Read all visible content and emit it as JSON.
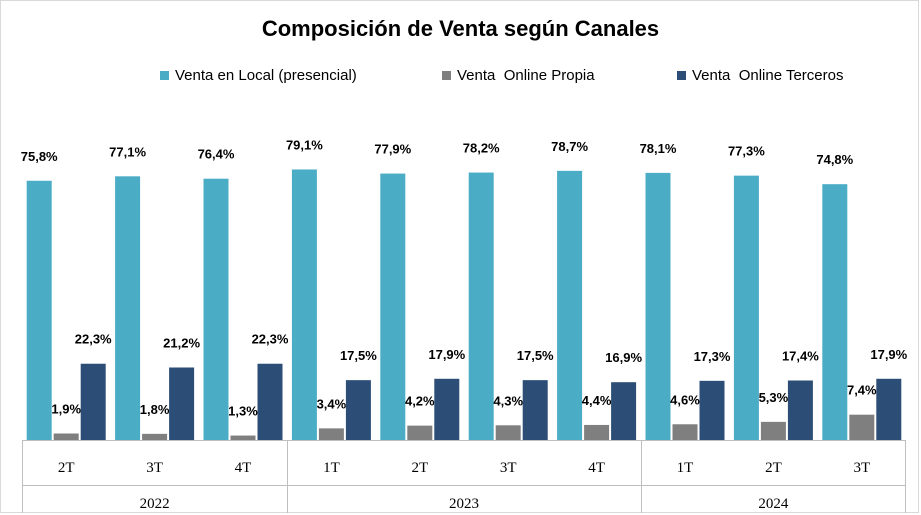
{
  "chart_data": {
    "type": "bar",
    "title": "Composición de Venta según Canales",
    "colors": {
      "local": "#4bacc6",
      "propia": "#7f7f7f",
      "terceros": "#2c4d75"
    },
    "groups": [
      {
        "year": "2022",
        "quarters": [
          "2T",
          "3T",
          "4T"
        ]
      },
      {
        "year": "2023",
        "quarters": [
          "1T",
          "2T",
          "3T",
          "4T"
        ]
      },
      {
        "year": "2024",
        "quarters": [
          "1T",
          "2T",
          "3T"
        ]
      }
    ],
    "categories": [
      "2T",
      "3T",
      "4T",
      "1T",
      "2T",
      "3T",
      "4T",
      "1T",
      "2T",
      "3T"
    ],
    "series": [
      {
        "name": "Venta en Local (presencial)",
        "key": "local",
        "values": [
          75.8,
          77.1,
          76.4,
          79.1,
          77.9,
          78.2,
          78.7,
          78.1,
          77.3,
          74.8
        ],
        "labels": [
          "75,8%",
          "77,1%",
          "76,4%",
          "79,1%",
          "77,9%",
          "78,2%",
          "78,7%",
          "78,1%",
          "77,3%",
          "74,8%"
        ]
      },
      {
        "name": "Venta  Online Propia",
        "key": "propia",
        "values": [
          1.9,
          1.8,
          1.3,
          3.4,
          4.2,
          4.3,
          4.4,
          4.6,
          5.3,
          7.4
        ],
        "labels": [
          "1,9%",
          "1,8%",
          "1,3%",
          "3,4%",
          "4,2%",
          "4,3%",
          "4,4%",
          "4,6%",
          "5,3%",
          "7,4%"
        ]
      },
      {
        "name": "Venta  Online Terceros",
        "key": "terceros",
        "values": [
          22.3,
          21.2,
          22.3,
          17.5,
          17.9,
          17.5,
          16.9,
          17.3,
          17.4,
          17.9
        ],
        "labels": [
          "22,3%",
          "21,2%",
          "22,3%",
          "17,5%",
          "17,9%",
          "17,5%",
          "16,9%",
          "17,3%",
          "17,4%",
          "17,9%"
        ]
      }
    ],
    "ylim": [
      0,
      100
    ],
    "grid": false,
    "legend": "top"
  }
}
